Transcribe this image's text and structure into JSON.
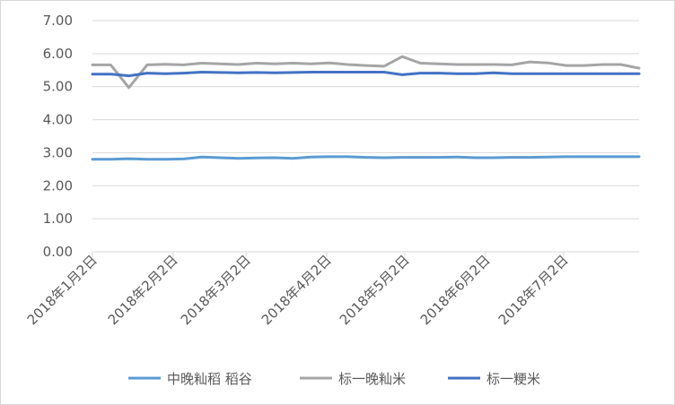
{
  "chart_data": {
    "type": "line",
    "title": "",
    "xlabel": "",
    "ylabel": "",
    "ylim": [
      0,
      7
    ],
    "y_ticks": [
      "0.00",
      "1.00",
      "2.00",
      "3.00",
      "4.00",
      "5.00",
      "6.00",
      "7.00"
    ],
    "x_tick_labels": [
      "2018年1月2日",
      "2018年2月2日",
      "2018年3月2日",
      "2018年4月2日",
      "2018年5月2日",
      "2018年6月2日",
      "2018年7月2日"
    ],
    "grid": "horizontal",
    "legend": "bottom",
    "x": [
      "2018-01-02",
      "2018-01-09",
      "2018-01-16",
      "2018-01-23",
      "2018-01-30",
      "2018-02-06",
      "2018-02-13",
      "2018-02-20",
      "2018-02-27",
      "2018-03-06",
      "2018-03-13",
      "2018-03-20",
      "2018-03-27",
      "2018-04-03",
      "2018-04-10",
      "2018-04-17",
      "2018-04-24",
      "2018-05-01",
      "2018-05-08",
      "2018-05-15",
      "2018-05-22",
      "2018-05-29",
      "2018-06-05",
      "2018-06-12",
      "2018-06-19",
      "2018-06-26",
      "2018-07-03",
      "2018-07-10",
      "2018-07-17",
      "2018-07-24",
      "2018-07-31"
    ],
    "series": [
      {
        "name": "中晚籼稻 稻谷",
        "color": "#5b9bd5",
        "values": [
          2.8,
          2.8,
          2.82,
          2.8,
          2.8,
          2.81,
          2.87,
          2.85,
          2.83,
          2.84,
          2.85,
          2.83,
          2.87,
          2.88,
          2.88,
          2.86,
          2.85,
          2.86,
          2.86,
          2.86,
          2.87,
          2.85,
          2.85,
          2.86,
          2.86,
          2.87,
          2.88,
          2.88,
          2.88,
          2.88,
          2.88
        ]
      },
      {
        "name": "标一晚籼米",
        "color": "#a5a5a5",
        "values": [
          5.66,
          5.66,
          4.97,
          5.66,
          5.68,
          5.66,
          5.71,
          5.69,
          5.67,
          5.71,
          5.69,
          5.71,
          5.69,
          5.72,
          5.67,
          5.64,
          5.62,
          5.91,
          5.71,
          5.69,
          5.67,
          5.67,
          5.67,
          5.66,
          5.75,
          5.72,
          5.64,
          5.64,
          5.67,
          5.67,
          5.56
        ]
      },
      {
        "name": "标一粳米",
        "color": "#4472c4",
        "values": [
          5.38,
          5.38,
          5.33,
          5.41,
          5.39,
          5.41,
          5.44,
          5.43,
          5.42,
          5.43,
          5.42,
          5.43,
          5.44,
          5.44,
          5.44,
          5.44,
          5.44,
          5.36,
          5.41,
          5.41,
          5.39,
          5.39,
          5.42,
          5.39,
          5.39,
          5.39,
          5.39,
          5.39,
          5.39,
          5.39,
          5.39
        ]
      }
    ]
  }
}
